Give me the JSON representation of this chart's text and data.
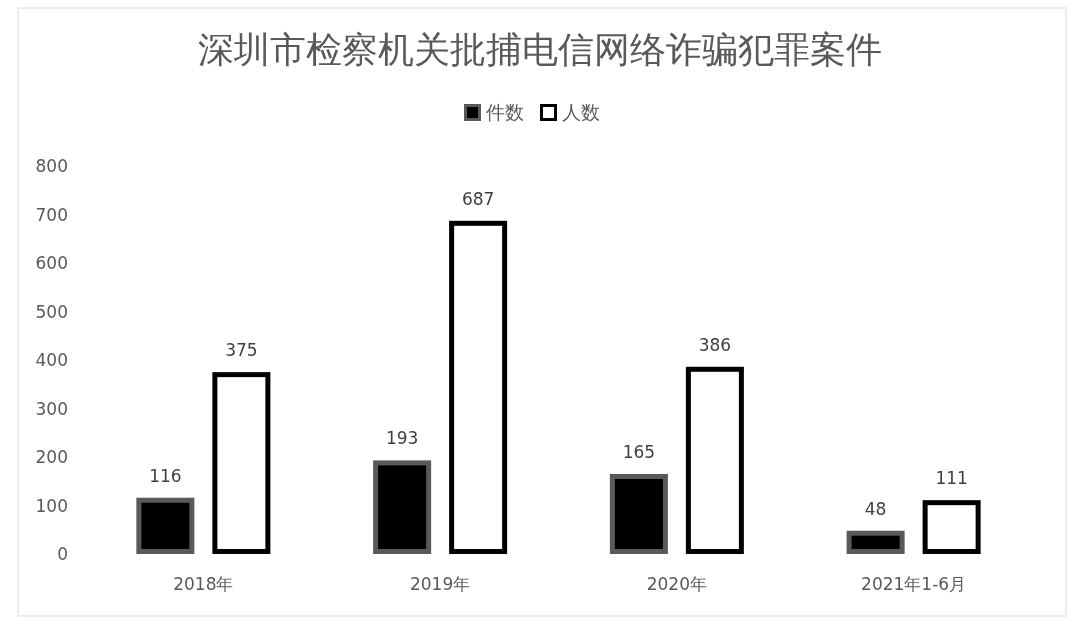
{
  "chart_data": {
    "type": "bar",
    "title": "深圳市检察机关批捕电信网络诈骗犯罪案件",
    "categories": [
      "2018年",
      "2019年",
      "2020年",
      "2021年1-6月"
    ],
    "series": [
      {
        "name": "件数",
        "color": "#000000",
        "values": [
          116,
          193,
          165,
          48
        ]
      },
      {
        "name": "人数",
        "color": "#ffffff",
        "values": [
          375,
          687,
          386,
          111
        ]
      }
    ],
    "ylim": [
      0,
      800
    ],
    "yticks": [
      0,
      100,
      200,
      300,
      400,
      500,
      600,
      700,
      800
    ],
    "data_labels": true,
    "legend": "top",
    "grid": false
  }
}
